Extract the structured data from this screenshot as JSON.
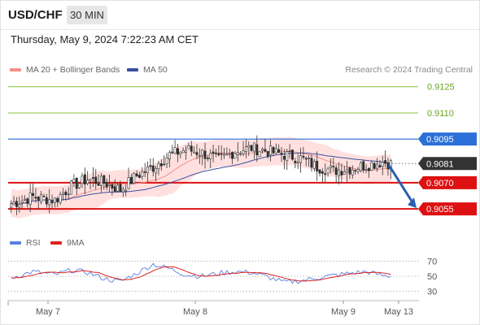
{
  "header": {
    "symbol": "USD/CHF",
    "timeframe": "30 MIN",
    "datetime": "Thursday, May 9, 2024 7:22:23 AM CET"
  },
  "legend": {
    "ma20": "MA 20 + Bollinger Bands",
    "ma50": "MA 50",
    "credit": "Research © 2024 Trading Central"
  },
  "rsi_legend": {
    "rsi": "RSI",
    "ma9": "9MA"
  },
  "colors": {
    "up_candle": "#ffffff",
    "down_candle": "#2b2b2b",
    "ma20": "#f0908a",
    "band_fill": "#ffd6d4",
    "ma50": "#3a4fa0",
    "green_level": "#8cc63f",
    "blue_level": "#2b6fd8",
    "red_level": "#dd1111",
    "current_tag": "#333333",
    "arrow": "#2a5fb0",
    "rsi": "#5a7fe0",
    "rsi_ma": "#dd2222"
  },
  "chart_data": {
    "type": "candlestick",
    "instrument": "USD/CHF",
    "interval": "30 MIN",
    "price_levels": [
      {
        "label": "0.9125",
        "value": 0.9125,
        "style": "green"
      },
      {
        "label": "0.9110",
        "value": 0.911,
        "style": "green"
      },
      {
        "label": "0.9095",
        "value": 0.9095,
        "style": "blue"
      },
      {
        "label": "0.9081",
        "value": 0.9081,
        "style": "current"
      },
      {
        "label": "0.9070",
        "value": 0.907,
        "style": "red"
      },
      {
        "label": "0.9055",
        "value": 0.9055,
        "style": "red"
      }
    ],
    "y_range": [
      0.9049,
      0.913
    ],
    "x_ticks": [
      "May 7",
      "May 8",
      "May 9",
      "May 13"
    ],
    "close_anchors": [
      [
        0,
        0.9058
      ],
      [
        8,
        0.9062
      ],
      [
        16,
        0.906
      ],
      [
        22,
        0.9068
      ],
      [
        28,
        0.9072
      ],
      [
        34,
        0.907
      ],
      [
        40,
        0.9066
      ],
      [
        46,
        0.9074
      ],
      [
        52,
        0.9079
      ],
      [
        58,
        0.9086
      ],
      [
        64,
        0.9089
      ],
      [
        70,
        0.9087
      ],
      [
        76,
        0.9083
      ],
      [
        82,
        0.9088
      ],
      [
        88,
        0.909
      ],
      [
        94,
        0.9088
      ],
      [
        100,
        0.9086
      ],
      [
        106,
        0.9084
      ],
      [
        112,
        0.9079
      ],
      [
        118,
        0.9077
      ],
      [
        124,
        0.9078
      ],
      [
        130,
        0.908
      ],
      [
        136,
        0.9082
      ],
      [
        139,
        0.9081
      ]
    ],
    "projection": {
      "from": 0.9081,
      "to": 0.9055
    },
    "rsi": {
      "levels": [
        70,
        50,
        30
      ],
      "range": [
        20,
        80
      ],
      "anchors": [
        [
          0,
          48
        ],
        [
          8,
          56
        ],
        [
          16,
          52
        ],
        [
          22,
          58
        ],
        [
          28,
          55
        ],
        [
          34,
          47
        ],
        [
          40,
          43
        ],
        [
          46,
          54
        ],
        [
          52,
          66
        ],
        [
          58,
          60
        ],
        [
          64,
          52
        ],
        [
          70,
          50
        ],
        [
          76,
          54
        ],
        [
          82,
          56
        ],
        [
          88,
          55
        ],
        [
          94,
          49
        ],
        [
          100,
          42
        ],
        [
          106,
          44
        ],
        [
          112,
          48
        ],
        [
          118,
          51
        ],
        [
          124,
          54
        ],
        [
          130,
          56
        ],
        [
          136,
          51
        ],
        [
          139,
          50
        ]
      ]
    }
  }
}
